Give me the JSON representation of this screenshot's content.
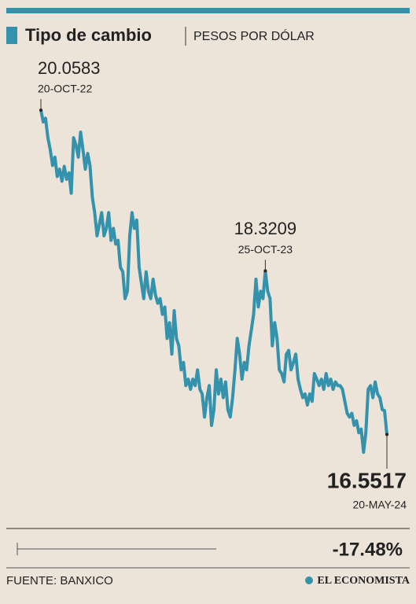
{
  "chart_data": {
    "type": "line",
    "title": "Tipo de cambio",
    "subtitle": "PESOS POR DÓLAR",
    "color": "#3592ad",
    "values": [
      20.0583,
      19.93,
      19.97,
      19.76,
      19.63,
      19.46,
      19.55,
      19.34,
      19.42,
      19.29,
      19.45,
      19.31,
      19.38,
      19.16,
      19.76,
      19.68,
      19.55,
      19.82,
      19.63,
      19.42,
      19.59,
      19.46,
      19.12,
      18.95,
      18.7,
      18.82,
      18.95,
      18.7,
      18.78,
      18.95,
      18.65,
      18.78,
      18.61,
      18.65,
      18.36,
      18.31,
      18.02,
      18.1,
      18.7,
      18.95,
      18.78,
      18.87,
      18.36,
      18.19,
      18.02,
      18.31,
      18.1,
      18.02,
      18.23,
      18.06,
      17.97,
      18.02,
      17.85,
      17.93,
      17.59,
      17.76,
      17.42,
      17.89,
      17.59,
      17.51,
      17.25,
      17.33,
      17.08,
      17.15,
      17.04,
      17.15,
      17.08,
      17.25,
      17.04,
      16.99,
      16.74,
      16.95,
      17.08,
      16.65,
      16.82,
      17.25,
      16.99,
      17.15,
      16.95,
      17.12,
      16.82,
      16.74,
      16.95,
      17.25,
      17.59,
      17.42,
      17.15,
      17.33,
      17.25,
      17.51,
      17.68,
      17.85,
      18.23,
      17.93,
      18.1,
      18.02,
      18.3209,
      18.1,
      18.02,
      17.51,
      17.76,
      17.59,
      17.25,
      17.21,
      17.12,
      17.42,
      17.46,
      17.25,
      17.33,
      17.42,
      17.15,
      17.04,
      16.95,
      16.99,
      16.87,
      16.99,
      16.91,
      17.21,
      17.15,
      17.08,
      17.15,
      17.04,
      17.21,
      17.08,
      17.15,
      17.04,
      17.12,
      17.08,
      17.08,
      17.04,
      16.91,
      16.78,
      16.74,
      16.78,
      16.65,
      16.7,
      16.57,
      16.61,
      16.36,
      16.57,
      17.04,
      17.08,
      16.95,
      17.12,
      16.99,
      16.95,
      16.82,
      16.81,
      16.5517
    ],
    "categories": [
      "20-OCT-22",
      null,
      null,
      null,
      null,
      null,
      null,
      null,
      null,
      null,
      null,
      null,
      null,
      null,
      null,
      null,
      null,
      null,
      null,
      null,
      null,
      null,
      null,
      null,
      null,
      null,
      null,
      null,
      null,
      null,
      null,
      null,
      null,
      null,
      null,
      null,
      null,
      null,
      null,
      null,
      null,
      null,
      null,
      null,
      null,
      null,
      null,
      null,
      null,
      null,
      null,
      null,
      null,
      null,
      null,
      null,
      null,
      null,
      null,
      null,
      null,
      null,
      null,
      null,
      null,
      null,
      null,
      null,
      null,
      null,
      null,
      null,
      null,
      null,
      null,
      null,
      null,
      null,
      null,
      null,
      null,
      null,
      null,
      null,
      null,
      null,
      null,
      null,
      null,
      null,
      null,
      null,
      null,
      null,
      null,
      null,
      "25-OCT-23",
      null,
      null,
      null,
      null,
      null,
      null,
      null,
      null,
      null,
      null,
      null,
      null,
      null,
      null,
      null,
      null,
      null,
      null,
      null,
      null,
      null,
      null,
      null,
      null,
      null,
      null,
      null,
      null,
      null,
      null,
      null,
      null,
      null,
      null,
      null,
      null,
      null,
      null,
      null,
      null,
      null,
      null,
      null,
      null,
      null,
      null,
      null,
      null,
      null,
      null,
      null,
      "20-MAY-24"
    ],
    "change": {
      "value": -17.48,
      "label": "-17.48%"
    },
    "source": "FUENTE: BANXICO",
    "brand": "EL ECONOMISTA"
  }
}
